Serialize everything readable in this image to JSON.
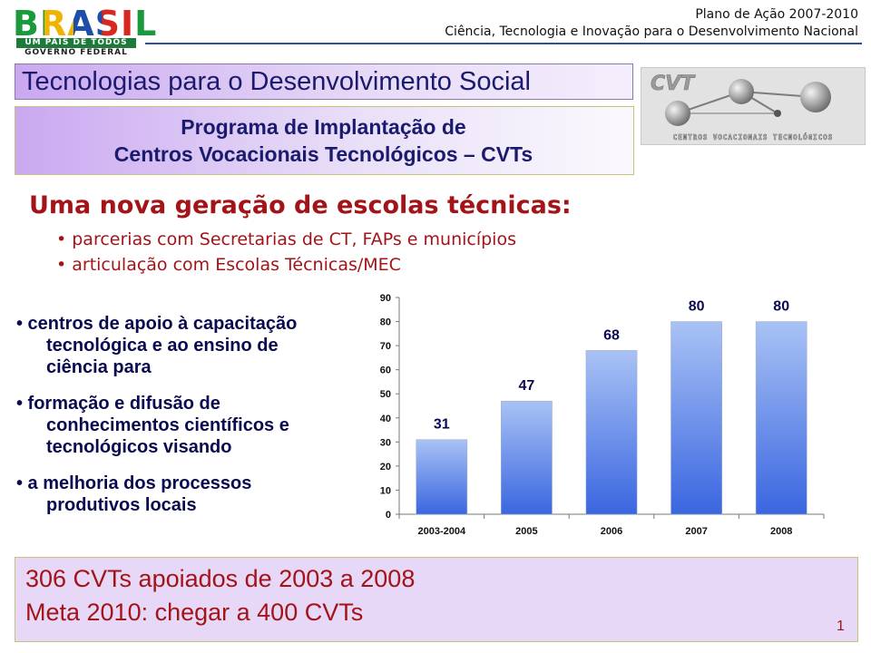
{
  "header": {
    "logo_word": "BRASIL",
    "logo_tagline": "UM PAÍS DE TODOS",
    "logo_gov": "GOVERNO FEDERAL",
    "line1": "Plano de Ação 2007-2010",
    "line2": "Ciência, Tecnologia e Inovação para o Desenvolvimento Nacional"
  },
  "title": "Tecnologias para o Desenvolvimento Social",
  "program": {
    "line1": "Programa de Implantação de",
    "line2": "Centros Vocacionais Tecnológicos – CVTs"
  },
  "cvt_logo": {
    "mark": "CVT",
    "caption": "CENTROS VOCACIONAIS TECNOLÓGICOS"
  },
  "heading": "Uma nova geração de escolas técnicas:",
  "sub_bullets": [
    "• parcerias com Secretarias de CT, FAPs e municípios",
    "• articulação com Escolas Técnicas/MEC"
  ],
  "left_bullets": [
    {
      "first": "• centros de apoio à capacitação",
      "rest": [
        "tecnológica e ao ensino de",
        "ciência para"
      ]
    },
    {
      "first": "• formação e difusão de",
      "rest": [
        "conhecimentos científicos e",
        "tecnológicos visando"
      ]
    },
    {
      "first": "• a melhoria dos processos",
      "rest": [
        "produtivos locais"
      ]
    }
  ],
  "chart_data": {
    "type": "bar",
    "categories": [
      "2003-2004",
      "2005",
      "2006",
      "2007",
      "2008"
    ],
    "values": [
      31,
      47,
      68,
      80,
      80
    ],
    "ylim": [
      0,
      90
    ],
    "yticks": [
      0,
      10,
      20,
      30,
      40,
      50,
      60,
      70,
      80,
      90
    ],
    "grid": false,
    "data_labels": true,
    "colors": {
      "bar_top": "#a9c2f5",
      "bar_bottom": "#3a66e0",
      "axis": "#7a7a7a"
    }
  },
  "bottom": {
    "line1": "306 CVTs apoiados de 2003 a 2008",
    "line2": "Meta 2010: chegar a 400 CVTs"
  },
  "page_number": "1"
}
